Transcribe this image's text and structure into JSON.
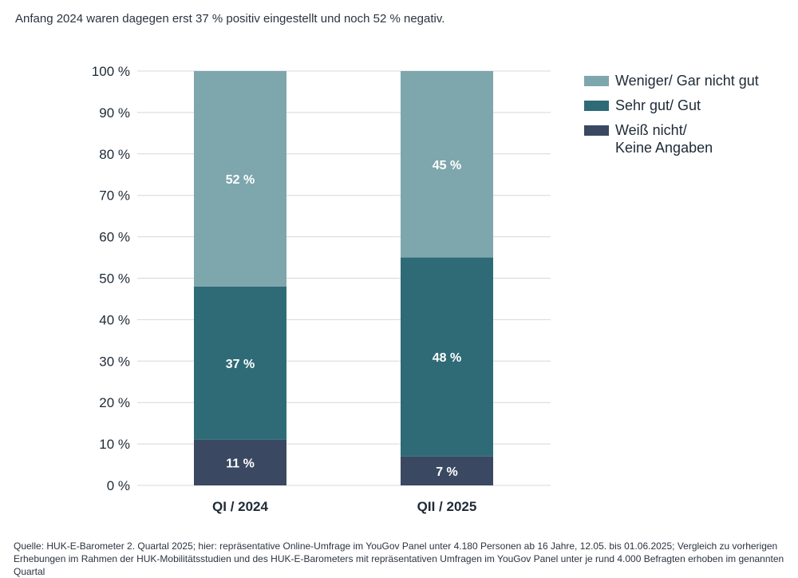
{
  "subtitle": "Anfang 2024 waren dagegen erst 37 % positiv eingestellt und noch 52 % negativ.",
  "source": "Quelle: HUK-E-Barometer 2. Quartal 2025; hier: repräsentative Online-Umfrage im YouGov Panel unter 4.180 Personen ab 16 Jahre, 12.05. bis 01.06.2025; Vergleich zu vorherigen Erhebungen im Rahmen der HUK-Mobilitätsstudien und des HUK-E-Barometers mit repräsentativen Umfragen im YouGov Panel unter je rund 4.000 Befragten erhoben im genannten Quartal",
  "colors": {
    "weniger": "#7ea6ad",
    "gut": "#2f6b77",
    "weiss_nicht": "#3a4862",
    "grid": "#d4d8dc"
  },
  "chart_data": {
    "type": "bar",
    "stacked": true,
    "categories": [
      "QI / 2024",
      "QII / 2025"
    ],
    "series": [
      {
        "name": "Weiß nicht/\nKeine Angaben",
        "values": [
          11,
          7
        ],
        "labels": [
          "11 %",
          "7 %"
        ],
        "color_key": "weiss_nicht"
      },
      {
        "name": "Sehr gut/ Gut",
        "values": [
          37,
          48
        ],
        "labels": [
          "37 %",
          "48 %"
        ],
        "color_key": "gut"
      },
      {
        "name": "Weniger/ Gar nicht gut",
        "values": [
          52,
          45
        ],
        "labels": [
          "52 %",
          "45 %"
        ],
        "color_key": "weniger"
      }
    ],
    "ylim": [
      0,
      100
    ],
    "yticks": [
      0,
      10,
      20,
      30,
      40,
      50,
      60,
      70,
      80,
      90,
      100
    ],
    "ytick_labels": [
      "0 %",
      "10 %",
      "20 %",
      "30 %",
      "40 %",
      "50 %",
      "60 %",
      "70 %",
      "80 %",
      "90 %",
      "100 %"
    ],
    "grid": true,
    "legend_position": "right",
    "legend_order": [
      "Weniger/ Gar nicht gut",
      "Sehr gut/ Gut",
      "Weiß nicht/\nKeine Angaben"
    ]
  }
}
